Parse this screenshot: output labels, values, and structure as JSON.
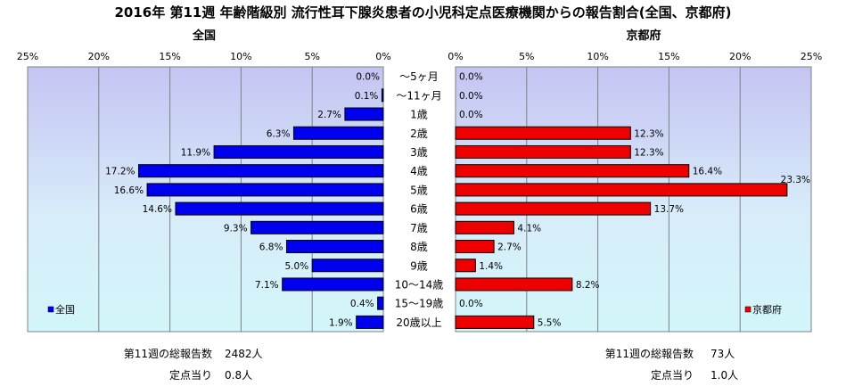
{
  "title": "2016年 第11週 年齢階級別 流行性耳下腺炎患者の小児科定点医療機関からの報告割合(全国、京都府)",
  "chart_data": {
    "type": "bar",
    "orientation": "horizontal-butterfly",
    "categories": [
      "～5ヶ月",
      "～11ヶ月",
      "1歳",
      "2歳",
      "3歳",
      "4歳",
      "5歳",
      "6歳",
      "7歳",
      "8歳",
      "9歳",
      "10～14歳",
      "15～19歳",
      "20歳以上"
    ],
    "xlim": [
      0,
      25
    ],
    "ticks": [
      0,
      5,
      10,
      15,
      20,
      25
    ],
    "tick_suffix": "%",
    "grid": true,
    "series": [
      {
        "name": "全国",
        "panel_title": "全国",
        "legend_label": "全国",
        "color": "#0000ee",
        "values": [
          0.0,
          0.1,
          2.7,
          6.3,
          11.9,
          17.2,
          16.6,
          14.6,
          9.3,
          6.8,
          5.0,
          7.1,
          0.4,
          1.9
        ],
        "value_labels": [
          "0.0%",
          "0.1%",
          "2.7%",
          "6.3%",
          "11.9%",
          "17.2%",
          "16.6%",
          "14.6%",
          "9.3%",
          "6.8%",
          "5.0%",
          "7.1%",
          "0.4%",
          "1.9%"
        ]
      },
      {
        "name": "京都府",
        "panel_title": "京都府",
        "legend_label": "京都府",
        "color": "#ee0000",
        "values": [
          0.0,
          0.0,
          0.0,
          12.3,
          12.3,
          16.4,
          23.3,
          13.7,
          4.1,
          2.7,
          1.4,
          8.2,
          0.0,
          5.5
        ],
        "value_labels": [
          "0.0%",
          "0.0%",
          "0.0%",
          "12.3%",
          "12.3%",
          "16.4%",
          "23.3%",
          "13.7%",
          "4.1%",
          "2.7%",
          "1.4%",
          "8.2%",
          "0.0%",
          "5.5%"
        ]
      }
    ]
  },
  "stats": {
    "national": {
      "total_label": "第11週の総報告数",
      "total_value": "2482人",
      "per_site_label": "定点当り",
      "per_site_value": "0.8人"
    },
    "kyoto": {
      "total_label": "第11週の総報告数",
      "total_value": "73人",
      "per_site_label": "定点当り",
      "per_site_value": "1.0人"
    }
  }
}
